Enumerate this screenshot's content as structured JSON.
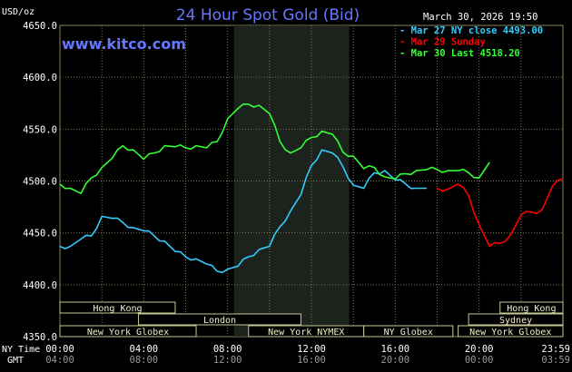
{
  "title": "24 Hour Spot Gold (Bid)",
  "date_label": "March 30, 2026 19:50",
  "site": "www.kitco.com",
  "unit_label": "USD/oz",
  "ny_time_label": "NY Time",
  "gmt_label": "GMT",
  "legend": [
    {
      "text": "Mar 27 NY close 4493.00",
      "color": "#33ccff"
    },
    {
      "text": "Mar 29 Sunday",
      "color": "#ff0000"
    },
    {
      "text": "Mar 30 Last 4518.20",
      "color": "#33ff33"
    }
  ],
  "sessions": [
    {
      "label": "Hong Kong",
      "start": 0,
      "end": 5.5,
      "row": 0
    },
    {
      "label": "London",
      "start": 3.75,
      "end": 11.5,
      "row": 1
    },
    {
      "label": "New York Globex",
      "start": 0,
      "end": 6.5,
      "row": 2
    },
    {
      "label": "New York NYMEX",
      "start": 9,
      "end": 14.5,
      "row": 2
    },
    {
      "label": "NY Globex",
      "start": 14.5,
      "end": 18.75,
      "row": 2
    },
    {
      "label": "Hong Kong",
      "start": 21,
      "end": 24,
      "row": 0
    },
    {
      "label": "Sydney",
      "start": 19.5,
      "end": 24,
      "row": 1
    },
    {
      "label": "New York Globex",
      "start": 19,
      "end": 24,
      "row": 2
    }
  ],
  "chart_data": {
    "type": "line",
    "x_unit": "hours (NY time)",
    "xlim": [
      0,
      24
    ],
    "ylim": [
      4350,
      4650
    ],
    "y_ticks": [
      "4650.0",
      "4600.0",
      "4550.0",
      "4500.0",
      "4450.0",
      "4400.0",
      "4350.0"
    ],
    "y_tick_values": [
      4650,
      4600,
      4550,
      4500,
      4450,
      4400,
      4350
    ],
    "x_ticks_ny": [
      "00:00",
      "04:00",
      "08:00",
      "12:00",
      "16:00",
      "20:00",
      "23:59"
    ],
    "x_ticks_gmt": [
      "04:00",
      "08:00",
      "12:00",
      "16:00",
      "20:00",
      "00:00",
      "03:59"
    ],
    "x_tick_hours": [
      0,
      4,
      8,
      12,
      16,
      20,
      23.98
    ],
    "shaded_region": [
      8.3,
      13.8
    ],
    "series": [
      {
        "name": "Mar 27 NY close 4493.00",
        "color": "#33ccff",
        "x": [
          0,
          0.5,
          1,
          1.5,
          2,
          2.5,
          3,
          3.5,
          4,
          4.5,
          5,
          5.5,
          6,
          6.5,
          7,
          7.5,
          8,
          8.5,
          9,
          9.5,
          10,
          10.5,
          11,
          11.5,
          12,
          12.5,
          13,
          13.5,
          14,
          14.5,
          15,
          15.5,
          16,
          16.5,
          17,
          17.5
        ],
        "y": [
          4437,
          4437,
          4444,
          4447,
          4466,
          4464,
          4460,
          4455,
          4452,
          4447,
          4442,
          4432,
          4427,
          4425,
          4420,
          4413,
          4415,
          4418,
          4427,
          4434,
          4437,
          4456,
          4471,
          4487,
          4515,
          4530,
          4527,
          4514,
          4496,
          4493,
          4508,
          4510,
          4501,
          4497,
          4493,
          4493
        ]
      },
      {
        "name": "Mar 29 Sunday",
        "color": "#ff0000",
        "x": [
          18,
          18.5,
          19,
          19.5,
          20,
          20.5,
          21,
          21.5,
          22,
          22.5,
          23,
          23.5,
          24
        ],
        "y": [
          4493,
          4492,
          4497,
          4486,
          4458,
          4437,
          4440,
          4448,
          4467,
          4470,
          4472,
          4495,
          4502
        ]
      },
      {
        "name": "Mar 30 Last 4518.20",
        "color": "#33ff33",
        "x": [
          0,
          0.5,
          1,
          1.5,
          2,
          2.5,
          3,
          3.5,
          4,
          4.5,
          5,
          5.5,
          6,
          6.5,
          7,
          7.5,
          8,
          8.5,
          9,
          9.5,
          10,
          10.5,
          11,
          11.5,
          12,
          12.5,
          13,
          13.5,
          14,
          14.5,
          15,
          15.5,
          16,
          16.5,
          17,
          17.5,
          18,
          18.5,
          19,
          19.5,
          20,
          20.5
        ],
        "y": [
          4497,
          4493,
          4488,
          4503,
          4513,
          4522,
          4534,
          4530,
          4521,
          4527,
          4534,
          4533,
          4532,
          4534,
          4532,
          4538,
          4560,
          4570,
          4574,
          4573,
          4565,
          4538,
          4527,
          4532,
          4542,
          4548,
          4545,
          4528,
          4524,
          4512,
          4513,
          4504,
          4502,
          4507,
          4510,
          4511,
          4511,
          4510,
          4510,
          4508,
          4503,
          4518
        ]
      }
    ]
  }
}
